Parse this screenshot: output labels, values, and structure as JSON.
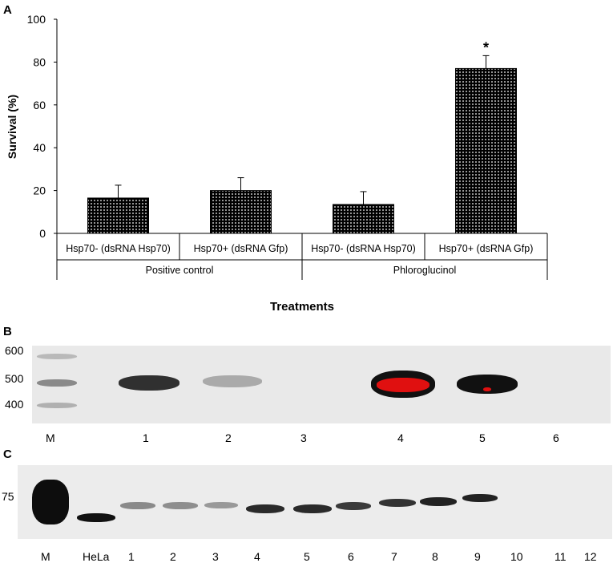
{
  "chart_data": {
    "type": "bar",
    "panel": "A",
    "categories": [
      "Hsp70- (dsRNA Hsp70)",
      "Hsp70+ (dsRNA Gfp)",
      "Hsp70- (dsRNA Hsp70)",
      "Hsp70+ (dsRNA Gfp)"
    ],
    "groups": [
      {
        "label": "Positive control",
        "categories": [
          0,
          1
        ]
      },
      {
        "label": "Phloroglucinol",
        "categories": [
          2,
          3
        ]
      }
    ],
    "values": [
      16.5,
      20,
      13.5,
      77
    ],
    "errors": [
      6,
      6,
      6,
      6
    ],
    "annotations": [
      "",
      "",
      "",
      "*"
    ],
    "ylabel": "Survival (%)",
    "xlabel": "Treatments",
    "ylim": [
      0,
      100
    ],
    "yticks": [
      0,
      20,
      40,
      60,
      80,
      100
    ],
    "bar_pattern": "black dotted",
    "grid": false
  },
  "panel_b": {
    "letter": "B",
    "size_markers": [
      "600",
      "500",
      "400"
    ],
    "lanes": [
      "M",
      "1",
      "2",
      "3",
      "4",
      "5",
      "6"
    ]
  },
  "panel_c": {
    "letter": "C",
    "size_markers": [
      "75"
    ],
    "lanes": [
      "M",
      "HeLa",
      "1",
      "2",
      "3",
      "4",
      "5",
      "6",
      "7",
      "8",
      "9",
      "10",
      "11",
      "12"
    ]
  }
}
